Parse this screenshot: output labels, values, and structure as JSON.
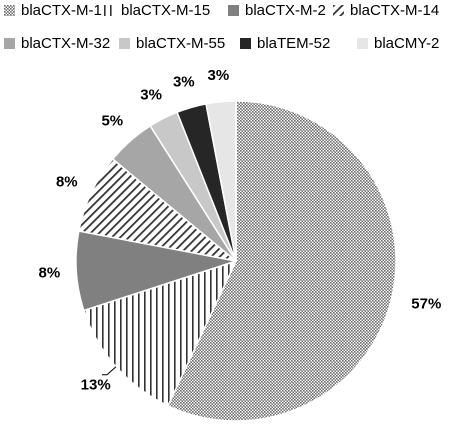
{
  "chart_data": {
    "type": "pie",
    "title": "",
    "legend_position": "top",
    "categories": [
      "blaCTX-M-1",
      "blaCTX-M-15",
      "blaCTX-M-2",
      "blaCTX-M-14",
      "blaCTX-M-32",
      "blaCTX-M-55",
      "blaTEM-52",
      "blaCMY-2"
    ],
    "values": [
      57,
      13,
      8,
      8,
      5,
      3,
      3,
      3
    ],
    "labels": [
      "57%",
      "13%",
      "8%",
      "8%",
      "5%",
      "3%",
      "3%",
      "3%"
    ],
    "fills": [
      "dots",
      "vertical-lines",
      "#808080",
      "diagonal-lines",
      "#a6a6a6",
      "#c8c8c8",
      "#262626",
      "#e6e6e6"
    ]
  }
}
